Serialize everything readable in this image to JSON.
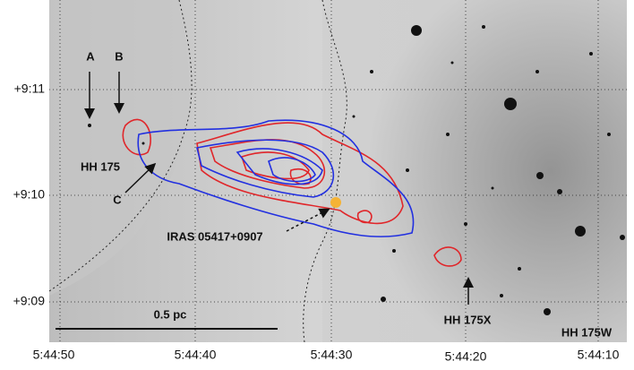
{
  "axes": {
    "dec_ticks": [
      "+9:11",
      "+9:10",
      "+9:09"
    ],
    "ra_ticks": [
      "5:44:50",
      "5:44:40",
      "5:44:30",
      "5:44:20",
      "5:44:10"
    ]
  },
  "labels": {
    "a": "A",
    "b": "B",
    "hh175": "HH 175",
    "c": "C",
    "iras": "IRAS 05417+0907",
    "scale": "0.5 pc",
    "hh175x": "HH 175X",
    "hh175w": "HH 175W"
  }
}
